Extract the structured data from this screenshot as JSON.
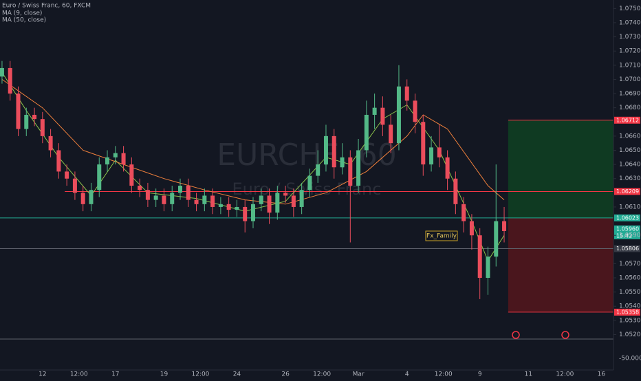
{
  "chart_data": {
    "type": "candlestick",
    "title": "Euro / Swiss Franc, 60, FXCM",
    "watermark": "EURCHF, 60",
    "watermark_subtitle": "Euro / Swiss Franc",
    "up_color": "#53b987",
    "down_color": "#eb4d5c",
    "grid": false,
    "xlim": [
      -42,
      564
    ],
    "ylim": [
      1.0495,
      1.0756
    ],
    "xticks": [
      {
        "value": 0,
        "label": "12"
      },
      {
        "value": 36,
        "label": "12:00"
      },
      {
        "value": 72,
        "label": "17"
      },
      {
        "value": 120,
        "label": "19"
      },
      {
        "value": 156,
        "label": "12:00"
      },
      {
        "value": 192,
        "label": "24"
      },
      {
        "value": 240,
        "label": "26"
      },
      {
        "value": 276,
        "label": "12:00"
      },
      {
        "value": 312,
        "label": "Mar"
      },
      {
        "value": 360,
        "label": "4"
      },
      {
        "value": 396,
        "label": "12:00"
      },
      {
        "value": 432,
        "label": "9"
      },
      {
        "value": 480,
        "label": "11"
      },
      {
        "value": 516,
        "label": "12:00"
      },
      {
        "value": 552,
        "label": "16"
      }
    ],
    "yticks": [
      {
        "value": 1.075,
        "label": "1.07500"
      },
      {
        "value": 1.074,
        "label": "1.07400"
      },
      {
        "value": 1.073,
        "label": "1.07300"
      },
      {
        "value": 1.072,
        "label": "1.07200"
      },
      {
        "value": 1.071,
        "label": "1.07100"
      },
      {
        "value": 1.07,
        "label": "1.07000"
      },
      {
        "value": 1.069,
        "label": "1.06900"
      },
      {
        "value": 1.068,
        "label": "1.06800"
      },
      {
        "value": 1.066,
        "label": "1.06600"
      },
      {
        "value": 1.065,
        "label": "1.06500"
      },
      {
        "value": 1.064,
        "label": "1.06400"
      },
      {
        "value": 1.063,
        "label": "1.06300"
      },
      {
        "value": 1.061,
        "label": "1.06100"
      },
      {
        "value": 1.059,
        "label": "1.05900"
      },
      {
        "value": 1.057,
        "label": "1.05700"
      },
      {
        "value": 1.056,
        "label": "1.05600"
      },
      {
        "value": 1.055,
        "label": "1.05500"
      },
      {
        "value": 1.054,
        "label": "1.05400"
      },
      {
        "value": 1.053,
        "label": "1.05300"
      },
      {
        "value": 1.052,
        "label": "1.05200"
      }
    ],
    "overlay_scale_label": "-50.00000",
    "x": [
      -40,
      -32,
      -24,
      -16,
      -8,
      0,
      8,
      16,
      24,
      32,
      40,
      48,
      56,
      64,
      72,
      80,
      88,
      96,
      104,
      112,
      120,
      128,
      136,
      144,
      152,
      160,
      168,
      176,
      184,
      192,
      200,
      208,
      216,
      224,
      232,
      240,
      248,
      256,
      264,
      272,
      280,
      288,
      296,
      304,
      312,
      320,
      328,
      336,
      344,
      352,
      360,
      368,
      376,
      384,
      392,
      400,
      408,
      416,
      424,
      432,
      440,
      448,
      456
    ],
    "open": [
      1.0702,
      1.0708,
      1.069,
      1.0665,
      1.0675,
      1.0672,
      1.066,
      1.065,
      1.0635,
      1.063,
      1.062,
      1.0612,
      1.0622,
      1.064,
      1.0645,
      1.0648,
      1.064,
      1.0625,
      1.0622,
      1.0615,
      1.0618,
      1.0612,
      1.062,
      1.0625,
      1.0615,
      1.0612,
      1.0618,
      1.061,
      1.0612,
      1.0608,
      1.061,
      1.06,
      1.0612,
      1.0618,
      1.0606,
      1.062,
      1.0618,
      1.061,
      1.0622,
      1.0632,
      1.064,
      1.066,
      1.0638,
      1.0645,
      1.0625,
      1.065,
      1.0675,
      1.068,
      1.0668,
      1.0655,
      1.0695,
      1.0685,
      1.067,
      1.064,
      1.0652,
      1.0645,
      1.063,
      1.0612,
      1.06,
      1.059,
      1.056,
      1.0575,
      1.06
    ],
    "high": [
      1.0713,
      1.0713,
      1.0695,
      1.068,
      1.068,
      1.0677,
      1.0665,
      1.0655,
      1.064,
      1.0635,
      1.0625,
      1.0627,
      1.0645,
      1.065,
      1.0653,
      1.0653,
      1.0645,
      1.063,
      1.0627,
      1.0623,
      1.0623,
      1.0625,
      1.063,
      1.063,
      1.062,
      1.0623,
      1.0623,
      1.0617,
      1.0617,
      1.0615,
      1.0615,
      1.0617,
      1.0623,
      1.0623,
      1.0625,
      1.0625,
      1.0623,
      1.0627,
      1.0637,
      1.065,
      1.0668,
      1.0665,
      1.0655,
      1.065,
      1.0658,
      1.0685,
      1.069,
      1.0688,
      1.0675,
      1.071,
      1.07,
      1.069,
      1.0675,
      1.066,
      1.0668,
      1.065,
      1.0635,
      1.0617,
      1.0605,
      1.0595,
      1.0582,
      1.064,
      1.061
    ],
    "low": [
      1.0697,
      1.0685,
      1.066,
      1.066,
      1.0667,
      1.0655,
      1.0645,
      1.063,
      1.0625,
      1.0615,
      1.0607,
      1.0607,
      1.0617,
      1.0635,
      1.064,
      1.0635,
      1.062,
      1.0617,
      1.061,
      1.061,
      1.0607,
      1.0607,
      1.0615,
      1.061,
      1.0607,
      1.0607,
      1.0605,
      1.0605,
      1.0603,
      1.0603,
      1.0592,
      1.0595,
      1.0607,
      1.0598,
      1.0601,
      1.0613,
      1.0603,
      1.0605,
      1.0617,
      1.0627,
      1.0635,
      1.063,
      1.0633,
      1.0585,
      1.062,
      1.0645,
      1.0665,
      1.066,
      1.0648,
      1.065,
      1.0678,
      1.0662,
      1.0632,
      1.0635,
      1.0638,
      1.0622,
      1.0605,
      1.0592,
      1.058,
      1.0545,
      1.0548,
      1.0568,
      1.0585
    ],
    "close": [
      1.0708,
      1.069,
      1.0665,
      1.0675,
      1.0672,
      1.066,
      1.065,
      1.0635,
      1.063,
      1.062,
      1.0612,
      1.0622,
      1.064,
      1.0645,
      1.0648,
      1.064,
      1.0625,
      1.0622,
      1.0615,
      1.0618,
      1.0612,
      1.062,
      1.0625,
      1.0615,
      1.0612,
      1.0618,
      1.061,
      1.0612,
      1.0608,
      1.061,
      1.06,
      1.0612,
      1.0618,
      1.0606,
      1.062,
      1.0618,
      1.061,
      1.0622,
      1.0632,
      1.064,
      1.066,
      1.0638,
      1.0645,
      1.0625,
      1.065,
      1.0675,
      1.068,
      1.0668,
      1.0655,
      1.0695,
      1.0685,
      1.067,
      1.064,
      1.0652,
      1.0645,
      1.063,
      1.0612,
      1.06,
      1.059,
      1.056,
      1.0575,
      1.06,
      1.0593
    ],
    "overlays": [
      {
        "name": "MA (9, close)",
        "color": "#8bc34a",
        "x": [
          -40,
          -16,
          16,
          48,
          72,
          104,
          152,
          200,
          240,
          280,
          304,
          336,
          360,
          392,
          424,
          440,
          456
        ],
        "values": [
          1.0705,
          1.0678,
          1.0645,
          1.0618,
          1.0643,
          1.062,
          1.0616,
          1.0607,
          1.0614,
          1.0645,
          1.064,
          1.0672,
          1.0682,
          1.065,
          1.06,
          1.0572,
          1.059
        ]
      },
      {
        "name": "MA (50, close)",
        "color": "#f0803c",
        "x": [
          -40,
          0,
          40,
          80,
          120,
          160,
          200,
          240,
          280,
          320,
          360,
          376,
          400,
          440,
          456
        ],
        "values": [
          1.07,
          1.068,
          1.065,
          1.064,
          1.063,
          1.0622,
          1.0615,
          1.0612,
          1.062,
          1.0635,
          1.066,
          1.0675,
          1.0665,
          1.0625,
          1.0615
        ]
      }
    ],
    "price_lines": [
      {
        "value": 1.06209,
        "label": "1.06209",
        "color": "#f23645",
        "x_start": 22
      },
      {
        "value": 1.06023,
        "label": "1.06023",
        "color": "#22ab94",
        "x_start": -42
      },
      {
        "value": 1.05806,
        "label": "1.05806",
        "color": "#5d606b",
        "x_start": -42
      }
    ],
    "position": {
      "x_start": 460,
      "target": 1.06712,
      "target_label": "1.06712",
      "stop": 1.05358,
      "stop_label": "1.05358",
      "profit_color": "#0f3a22",
      "loss_color": "#4a161d"
    },
    "last_price": {
      "value": 1.0596,
      "label": "1.05960",
      "countdown": "15:42",
      "color": "#22ab94"
    },
    "author_label": "Fx_Family"
  }
}
